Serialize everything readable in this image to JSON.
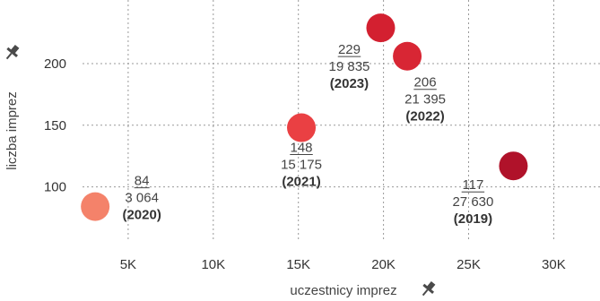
{
  "chart_data": {
    "type": "scatter",
    "xlabel": "uczestnicy imprez",
    "ylabel": "liczba imprez",
    "xlim": [
      0,
      33000
    ],
    "ylim": [
      65,
      240
    ],
    "x_ticks": [
      {
        "value": 5000,
        "label": "5K"
      },
      {
        "value": 10000,
        "label": "10K"
      },
      {
        "value": 15000,
        "label": "15K"
      },
      {
        "value": 20000,
        "label": "20K"
      },
      {
        "value": 25000,
        "label": "25K"
      },
      {
        "value": 30000,
        "label": "30K"
      }
    ],
    "y_ticks": [
      {
        "value": 100,
        "label": "100"
      },
      {
        "value": 150,
        "label": "150"
      },
      {
        "value": 200,
        "label": "200"
      }
    ],
    "grid": true,
    "points": [
      {
        "x": 3064,
        "y": 84,
        "count_label": "84",
        "value_label": "3 064",
        "year_label": "(2020)",
        "color": "#f4826a"
      },
      {
        "x": 15175,
        "y": 148,
        "count_label": "148",
        "value_label": "15 175",
        "year_label": "(2021)",
        "color": "#ea4043"
      },
      {
        "x": 19835,
        "y": 229,
        "count_label": "229",
        "value_label": "19 835",
        "year_label": "(2023)",
        "color": "#d32030"
      },
      {
        "x": 21395,
        "y": 206,
        "count_label": "206",
        "value_label": "21 395",
        "year_label": "(2022)",
        "color": "#d82634"
      },
      {
        "x": 27630,
        "y": 117,
        "count_label": "117",
        "value_label": "27 630",
        "year_label": "(2019)",
        "color": "#b0122a"
      }
    ]
  },
  "icons": {
    "y_axis_pin": "pin-icon",
    "x_axis_pin": "pin-icon"
  }
}
